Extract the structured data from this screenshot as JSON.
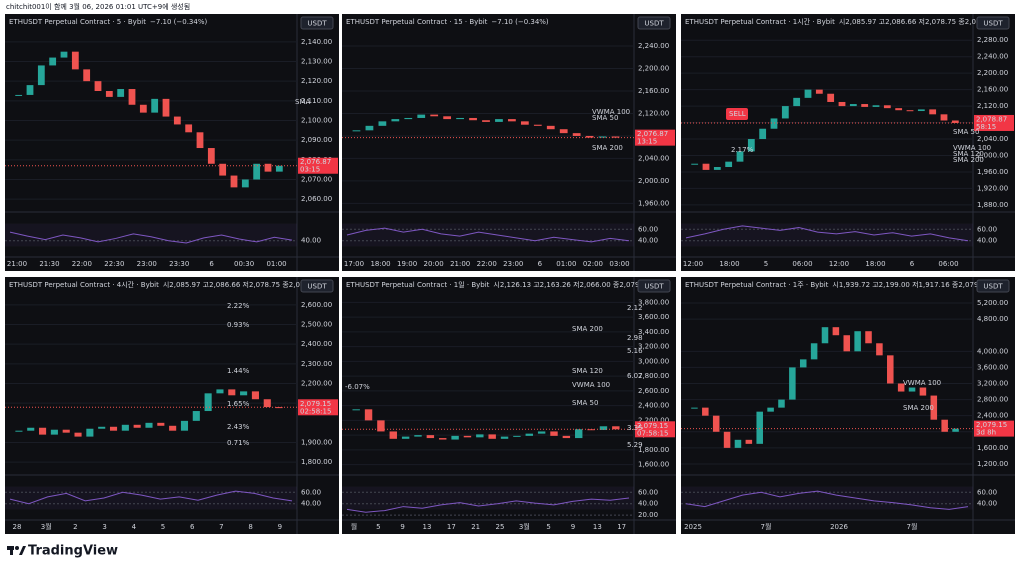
{
  "header": {
    "caption": "chitchit001이 함께 3월 06, 2026 01:01 UTC+9에 생성됨"
  },
  "footer": {
    "logo": "TradingView"
  },
  "panels": [
    {
      "title": "ETHUSDT Perpetual Contract · 5 · Bybit",
      "info": "−7.10 (−0.34%)",
      "currency": "USDT",
      "ylim": [
        2055,
        2145
      ],
      "yticks": [
        {
          "value": 2140,
          "label": "2,140.00"
        },
        {
          "value": 2130,
          "label": "2,130.00"
        },
        {
          "value": 2120,
          "label": "2,120.00"
        },
        {
          "value": 2110,
          "label": "2,110.00"
        },
        {
          "value": 2100,
          "label": "2,100.00"
        },
        {
          "value": 2090,
          "label": "2,090.00"
        },
        {
          "value": 2080,
          "label": "2,080.00"
        },
        {
          "value": 2070,
          "label": "2,070.00"
        },
        {
          "value": 2060,
          "label": "2,060.00"
        }
      ],
      "closes": [
        2113,
        2118,
        2128,
        2132,
        2135,
        2126,
        2120,
        2115,
        2112,
        2116,
        2108,
        2104,
        2111,
        2102,
        2098,
        2094,
        2086,
        2078,
        2072,
        2066,
        2070,
        2078,
        2074,
        2077
      ],
      "price_tag": "2,076.87",
      "countdown": "03:15",
      "annotations": [
        "SMA"
      ],
      "rsi_ticks": [
        {
          "value": 40,
          "label": "40.00"
        }
      ],
      "rsi": [
        55,
        48,
        42,
        50,
        45,
        38,
        44,
        52,
        47,
        40,
        36,
        45,
        50,
        43,
        38,
        46,
        41
      ],
      "time": [
        "21:00",
        "21:30",
        "22:00",
        "22:30",
        "23:00",
        "23:30",
        "6",
        "00:30",
        "01:00"
      ]
    },
    {
      "title": "ETHUSDT Perpetual Contract · 15 · Bybit",
      "info": "−7.10 (−0.34%)",
      "currency": "USDT",
      "ylim": [
        1950,
        2265
      ],
      "yticks": [
        {
          "value": 2240,
          "label": "2,240.00"
        },
        {
          "value": 2200,
          "label": "2,200.00"
        },
        {
          "value": 2160,
          "label": "2,160.00"
        },
        {
          "value": 2120,
          "label": "2,120.00"
        },
        {
          "value": 2080,
          "label": "2,080.00"
        },
        {
          "value": 2040,
          "label": "2,040.00"
        },
        {
          "value": 2000,
          "label": "2,000.00"
        },
        {
          "value": 1960,
          "label": "1,960.00"
        }
      ],
      "closes": [
        2090,
        2098,
        2106,
        2110,
        2112,
        2118,
        2115,
        2110,
        2112,
        2108,
        2105,
        2110,
        2106,
        2100,
        2098,
        2092,
        2085,
        2080,
        2077,
        2079,
        2077
      ],
      "price_tag": "2,076.87",
      "countdown": "13:15",
      "annotations": [
        "VWMA 100",
        "SMA 50",
        "SMA 200"
      ],
      "rsi_ticks": [
        {
          "value": 60,
          "label": "60.00"
        },
        {
          "value": 40,
          "label": "40.00"
        }
      ],
      "rsi": [
        50,
        58,
        62,
        55,
        60,
        52,
        48,
        55,
        50,
        45,
        40,
        46,
        42,
        38,
        44,
        40
      ],
      "time": [
        "17:00",
        "18:00",
        "19:00",
        "20:00",
        "21:00",
        "22:00",
        "23:00",
        "6",
        "01:00",
        "02:00",
        "03:00"
      ]
    },
    {
      "title": "ETHUSDT Perpetual Contract · 1시간 · Bybit",
      "info": "시2,085.97 고2,086.66 저2,078.75 종2,078.87",
      "currency": "USDT",
      "ylim": [
        1870,
        2300
      ],
      "yticks": [
        {
          "value": 2280,
          "label": "2,280.00"
        },
        {
          "value": 2240,
          "label": "2,240.00"
        },
        {
          "value": 2200,
          "label": "2,200.00"
        },
        {
          "value": 2160,
          "label": "2,160.00"
        },
        {
          "value": 2120,
          "label": "2,120.00"
        },
        {
          "value": 2080,
          "label": "2,080.00"
        },
        {
          "value": 2040,
          "label": "2,040.00"
        },
        {
          "value": 2000,
          "label": "2,000.00"
        },
        {
          "value": 1960,
          "label": "1,960.00"
        },
        {
          "value": 1920,
          "label": "1,920.00"
        },
        {
          "value": 1880,
          "label": "1,880.00"
        }
      ],
      "closes": [
        1980,
        1965,
        1972,
        1985,
        2010,
        2040,
        2065,
        2090,
        2120,
        2140,
        2160,
        2150,
        2130,
        2120,
        2125,
        2118,
        2122,
        2115,
        2110,
        2108,
        2112,
        2100,
        2085,
        2079
      ],
      "price_tag": "2,078.87",
      "countdown": "58:15",
      "annotations": [
        "SELL",
        "2.17%",
        "SMA 50",
        "VWMA 100",
        "SMA 120",
        "SMA 200"
      ],
      "rsi_ticks": [
        {
          "value": 60,
          "label": "60.00"
        },
        {
          "value": 40,
          "label": "40.00"
        }
      ],
      "rsi": [
        45,
        52,
        60,
        66,
        62,
        58,
        63,
        55,
        52,
        56,
        50,
        54,
        48,
        52,
        45,
        40
      ],
      "time": [
        "12:00",
        "18:00",
        "5",
        "06:00",
        "12:00",
        "18:00",
        "6",
        "06:00"
      ]
    },
    {
      "title": "ETHUSDT Perpetual Contract · 4시간 · Bybit",
      "info": "시2,085.97 고2,086.66 저2,078.75 종2,079.15",
      "currency": "USDT",
      "ylim": [
        1750,
        2650
      ],
      "yticks": [
        {
          "value": 2600,
          "label": "2,600.00"
        },
        {
          "value": 2500,
          "label": "2,500.00"
        },
        {
          "value": 2400,
          "label": "2,400.00"
        },
        {
          "value": 2300,
          "label": "2,300.00"
        },
        {
          "value": 2200,
          "label": "2,200.00"
        },
        {
          "value": 2100,
          "label": "2,100.00"
        },
        {
          "value": 1900,
          "label": "1,900.00"
        },
        {
          "value": 1800,
          "label": "1,800.00"
        }
      ],
      "closes": [
        1960,
        1975,
        1940,
        1965,
        1950,
        1930,
        1970,
        1980,
        1960,
        1990,
        1975,
        2000,
        1985,
        1960,
        2010,
        2060,
        2150,
        2170,
        2140,
        2160,
        2120,
        2080,
        2079
      ],
      "price_tag": "2,079.15",
      "countdown": "02:58:15",
      "annotations": [
        "2.22%",
        "0.93%",
        "1.44%",
        "1.65%",
        "2.43%",
        "0.71%"
      ],
      "rsi_ticks": [
        {
          "value": 60,
          "label": "60.00"
        },
        {
          "value": 40,
          "label": "40.00"
        }
      ],
      "rsi": [
        48,
        40,
        52,
        58,
        45,
        50,
        60,
        55,
        48,
        52,
        46,
        55,
        62,
        58,
        50,
        45
      ],
      "time": [
        "28",
        "3월",
        "2",
        "3",
        "4",
        "5",
        "6",
        "7",
        "8",
        "9"
      ]
    },
    {
      "title": "ETHUSDT Perpetual Contract · 1일 · Bybit",
      "info": "시2,126.13 고2,163.26 저2,066.00 종2,079.15",
      "currency": "USDT",
      "ylim": [
        1500,
        3900
      ],
      "yticks": [
        {
          "value": 3800,
          "label": "3,800.00"
        },
        {
          "value": 3600,
          "label": "3,600.00"
        },
        {
          "value": 3400,
          "label": "3,400.00"
        },
        {
          "value": 3200,
          "label": "3,200.00"
        },
        {
          "value": 3000,
          "label": "3,000.00"
        },
        {
          "value": 2800,
          "label": "2,800.00"
        },
        {
          "value": 2600,
          "label": "2,600.00"
        },
        {
          "value": 2400,
          "label": "2,400.00"
        },
        {
          "value": 2200,
          "label": "2,200.00"
        },
        {
          "value": 2000,
          "label": "2,000.00"
        },
        {
          "value": 1800,
          "label": "1,800.00"
        },
        {
          "value": 1600,
          "label": "1,600.00"
        }
      ],
      "closes": [
        2350,
        2200,
        2050,
        1950,
        1980,
        2000,
        1960,
        1940,
        1990,
        1970,
        2010,
        1950,
        1980,
        1990,
        2020,
        2050,
        1990,
        1960,
        2080,
        2070,
        2120,
        2079
      ],
      "price_tag": "2,079.15",
      "countdown": "07:58:15",
      "annotations": [
        "2.12",
        "2.98",
        "5.16",
        "6.07",
        "3.35",
        "5.29",
        "-6.07%",
        "SMA 200",
        "SMA 120",
        "VWMA 100",
        "SMA 50"
      ],
      "rsi_ticks": [
        {
          "value": 60,
          "label": "60.00"
        },
        {
          "value": 40,
          "label": "40.00"
        },
        {
          "value": 20,
          "label": "20.00"
        }
      ],
      "rsi": [
        30,
        25,
        28,
        35,
        32,
        38,
        42,
        36,
        40,
        45,
        41,
        38,
        44,
        48,
        46,
        50
      ],
      "time": [
        "월",
        "5",
        "9",
        "13",
        "17",
        "21",
        "25",
        "3월",
        "5",
        "9",
        "13",
        "17"
      ]
    },
    {
      "title": "ETHUSDT Perpetual Contract · 1주 · Bybit",
      "info": "시1,939.72 고2,199.00 저1,917.16 종2,079.15",
      "currency": "USDT",
      "ylim": [
        1000,
        5400
      ],
      "yticks": [
        {
          "value": 5200,
          "label": "5,200.00"
        },
        {
          "value": 4800,
          "label": "4,800.00"
        },
        {
          "value": 4000,
          "label": "4,000.00"
        },
        {
          "value": 3600,
          "label": "3,600.00"
        },
        {
          "value": 3200,
          "label": "3,200.00"
        },
        {
          "value": 2800,
          "label": "2,800.00"
        },
        {
          "value": 2400,
          "label": "2,400.00"
        },
        {
          "value": 2000,
          "label": "2,000.00"
        },
        {
          "value": 1600,
          "label": "1,600.00"
        },
        {
          "value": 1200,
          "label": "1,200.00"
        }
      ],
      "closes": [
        2600,
        2400,
        2000,
        1600,
        1800,
        1700,
        2500,
        2600,
        2800,
        3600,
        3800,
        4200,
        4600,
        4400,
        4000,
        4500,
        4200,
        3900,
        3200,
        3000,
        3100,
        2900,
        2300,
        2000,
        2079
      ],
      "price_tag": "2,079.15",
      "countdown": "3d 8h",
      "annotations": [
        "VWMA 100",
        "SMA 200"
      ],
      "rsi_ticks": [
        {
          "value": 60,
          "label": "60.00"
        },
        {
          "value": 40,
          "label": "40.00"
        }
      ],
      "rsi": [
        40,
        35,
        45,
        55,
        60,
        52,
        58,
        62,
        55,
        50,
        45,
        42,
        38,
        33,
        30,
        35
      ],
      "time": [
        "2025",
        "7월",
        "2026",
        "7월"
      ]
    }
  ]
}
